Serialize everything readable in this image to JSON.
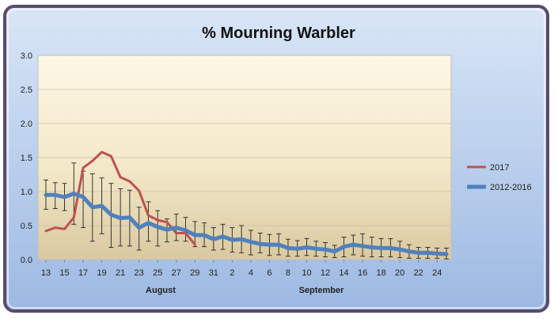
{
  "chart_data": {
    "type": "line",
    "title": "% Mourning Warbler",
    "x_ticks": [
      "13",
      "15",
      "17",
      "19",
      "21",
      "23",
      "25",
      "27",
      "29",
      "31",
      "2",
      "4",
      "6",
      "8",
      "10",
      "12",
      "14",
      "16",
      "18",
      "20",
      "22",
      "24"
    ],
    "month_labels": [
      "August",
      "September"
    ],
    "y_ticks": [
      "0.0",
      "0.5",
      "1.0",
      "1.5",
      "2.0",
      "2.5",
      "3.0"
    ],
    "ylim": [
      0,
      3.0
    ],
    "grid": true,
    "legend_position": "right",
    "series": [
      {
        "name": "2017",
        "color": "#c0504d",
        "values": [
          0.42,
          0.47,
          0.45,
          0.62,
          1.35,
          1.45,
          1.58,
          1.52,
          1.21,
          1.15,
          1.01,
          0.65,
          0.58,
          0.55,
          0.39,
          0.39,
          0.22
        ]
      },
      {
        "name": "2012-2016",
        "color": "#4f81bd",
        "values": [
          0.95,
          0.95,
          0.92,
          0.97,
          0.92,
          0.77,
          0.79,
          0.66,
          0.61,
          0.62,
          0.47,
          0.54,
          0.48,
          0.44,
          0.47,
          0.43,
          0.36,
          0.36,
          0.3,
          0.34,
          0.29,
          0.3,
          0.26,
          0.23,
          0.22,
          0.22,
          0.17,
          0.16,
          0.18,
          0.16,
          0.15,
          0.12,
          0.19,
          0.22,
          0.2,
          0.18,
          0.17,
          0.17,
          0.15,
          0.12,
          0.1,
          0.1,
          0.09,
          0.08
        ],
        "error_lower": [
          0.74,
          0.75,
          0.72,
          0.52,
          0.47,
          0.27,
          0.38,
          0.18,
          0.2,
          0.2,
          0.14,
          0.27,
          0.2,
          0.26,
          0.28,
          0.27,
          0.19,
          0.19,
          0.14,
          0.15,
          0.11,
          0.1,
          0.07,
          0.1,
          0.06,
          0.07,
          0.05,
          0.05,
          0.06,
          0.05,
          0.04,
          0.03,
          0.04,
          0.07,
          0.05,
          0.04,
          0.04,
          0.04,
          0.03,
          0.02,
          0.02,
          0.02,
          0.02,
          0.01
        ],
        "error_upper": [
          1.17,
          1.13,
          1.12,
          1.42,
          1.3,
          1.26,
          1.2,
          1.12,
          1.04,
          1.02,
          0.77,
          0.85,
          0.72,
          0.6,
          0.67,
          0.62,
          0.56,
          0.54,
          0.47,
          0.52,
          0.47,
          0.5,
          0.43,
          0.39,
          0.37,
          0.38,
          0.3,
          0.28,
          0.31,
          0.27,
          0.25,
          0.21,
          0.33,
          0.36,
          0.38,
          0.33,
          0.31,
          0.31,
          0.27,
          0.22,
          0.18,
          0.18,
          0.17,
          0.17
        ]
      }
    ]
  }
}
